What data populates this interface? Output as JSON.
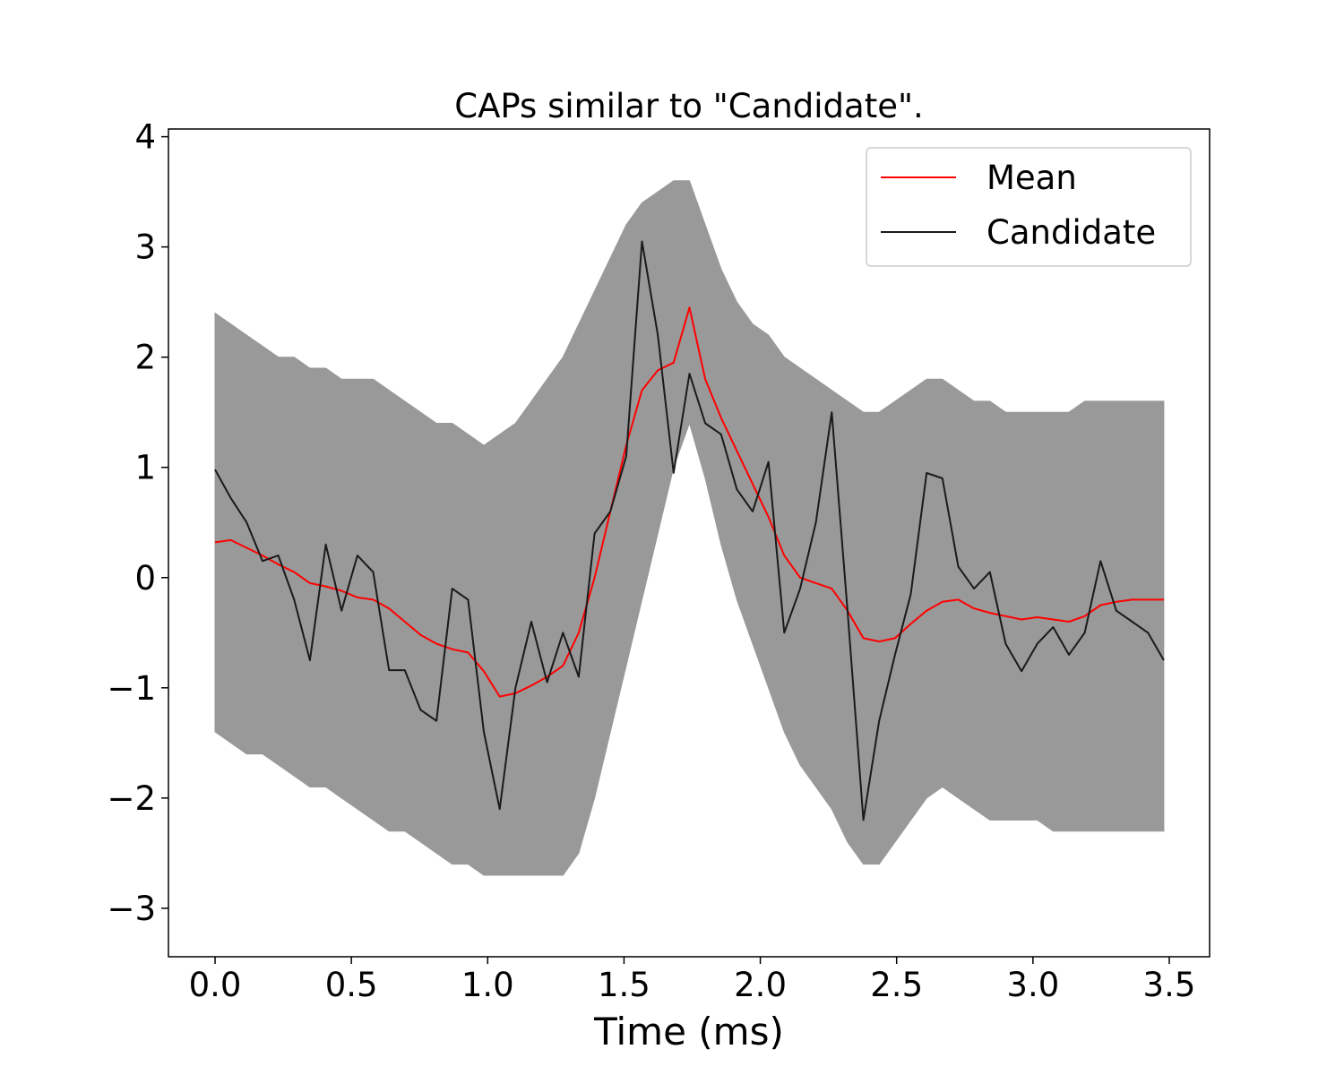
{
  "chart_data": {
    "type": "line",
    "title": "CAPs similar to \"Candidate\".",
    "xlabel": "Time (ms)",
    "xlim": [
      -0.171,
      3.648
    ],
    "ylim": [
      -3.44,
      4.07
    ],
    "xticks": [
      {
        "value": 0,
        "label": "0.0"
      },
      {
        "value": 0.5,
        "label": "0.5"
      },
      {
        "value": 1,
        "label": "1.0"
      },
      {
        "value": 1.5,
        "label": "1.5"
      },
      {
        "value": 2,
        "label": "2.0"
      },
      {
        "value": 2.5,
        "label": "2.5"
      },
      {
        "value": 3,
        "label": "3.0"
      },
      {
        "value": 3.5,
        "label": "3.5"
      }
    ],
    "yticks": [
      {
        "value": -3,
        "label": "−3"
      },
      {
        "value": -2,
        "label": "−2"
      },
      {
        "value": -1,
        "label": "−1"
      },
      0,
      1,
      2,
      3,
      4
    ],
    "legend": "upper right",
    "x": [
      0,
      0.058,
      0.116,
      0.174,
      0.232,
      0.29,
      0.348,
      0.406,
      0.464,
      0.522,
      0.58,
      0.638,
      0.696,
      0.754,
      0.812,
      0.87,
      0.928,
      0.986,
      1.044,
      1.102,
      1.16,
      1.218,
      1.276,
      1.334,
      1.392,
      1.45,
      1.508,
      1.566,
      1.624,
      1.682,
      1.74,
      1.798,
      1.856,
      1.914,
      1.972,
      2.03,
      2.088,
      2.146,
      2.204,
      2.262,
      2.32,
      2.378,
      2.436,
      2.494,
      2.552,
      2.61,
      2.668,
      2.726,
      2.784,
      2.842,
      2.9,
      2.958,
      3.016,
      3.074,
      3.132,
      3.19,
      3.248,
      3.306,
      3.364,
      3.422,
      3.48
    ],
    "band": {
      "color": "#999999",
      "upper": [
        2.4,
        2.3,
        2.2,
        2.1,
        2.0,
        2.0,
        1.9,
        1.9,
        1.8,
        1.8,
        1.8,
        1.7,
        1.6,
        1.5,
        1.4,
        1.4,
        1.3,
        1.2,
        1.3,
        1.4,
        1.6,
        1.8,
        2.0,
        2.3,
        2.6,
        2.9,
        3.2,
        3.4,
        3.5,
        3.6,
        3.6,
        3.2,
        2.8,
        2.5,
        2.3,
        2.2,
        2.0,
        1.9,
        1.8,
        1.7,
        1.6,
        1.5,
        1.5,
        1.6,
        1.7,
        1.8,
        1.8,
        1.7,
        1.6,
        1.6,
        1.5,
        1.5,
        1.5,
        1.5,
        1.5,
        1.6,
        1.6,
        1.6,
        1.6,
        1.6,
        1.6
      ],
      "lower": [
        -1.4,
        -1.5,
        -1.6,
        -1.6,
        -1.7,
        -1.8,
        -1.9,
        -1.9,
        -2.0,
        -2.1,
        -2.2,
        -2.3,
        -2.3,
        -2.4,
        -2.5,
        -2.6,
        -2.6,
        -2.7,
        -2.7,
        -2.7,
        -2.7,
        -2.7,
        -2.7,
        -2.5,
        -2.0,
        -1.4,
        -0.8,
        -0.2,
        0.4,
        1.0,
        1.4,
        0.9,
        0.3,
        -0.2,
        -0.6,
        -1.0,
        -1.4,
        -1.7,
        -1.9,
        -2.1,
        -2.4,
        -2.6,
        -2.6,
        -2.4,
        -2.2,
        -2.0,
        -1.9,
        -2.0,
        -2.1,
        -2.2,
        -2.2,
        -2.2,
        -2.2,
        -2.3,
        -2.3,
        -2.3,
        -2.3,
        -2.3,
        -2.3,
        -2.3,
        -2.3
      ]
    },
    "series": [
      {
        "name": "Mean",
        "color": "#ff0000",
        "values": [
          0.32,
          0.34,
          0.27,
          0.2,
          0.12,
          0.05,
          -0.05,
          -0.08,
          -0.12,
          -0.18,
          -0.2,
          -0.28,
          -0.4,
          -0.52,
          -0.6,
          -0.65,
          -0.68,
          -0.85,
          -1.08,
          -1.05,
          -0.98,
          -0.9,
          -0.8,
          -0.5,
          0.0,
          0.6,
          1.2,
          1.7,
          1.88,
          1.95,
          2.45,
          1.8,
          1.45,
          1.15,
          0.85,
          0.55,
          0.2,
          0.0,
          -0.05,
          -0.1,
          -0.3,
          -0.55,
          -0.58,
          -0.55,
          -0.42,
          -0.3,
          -0.22,
          -0.2,
          -0.28,
          -0.32,
          -0.35,
          -0.38,
          -0.36,
          -0.38,
          -0.4,
          -0.35,
          -0.25,
          -0.22,
          -0.2,
          -0.2,
          -0.2
        ]
      },
      {
        "name": "Candidate",
        "color": "#1a1a1a",
        "values": [
          0.98,
          0.72,
          0.5,
          0.15,
          0.2,
          -0.2,
          -0.75,
          0.3,
          -0.3,
          0.2,
          0.05,
          -0.84,
          -0.84,
          -1.2,
          -1.3,
          -0.1,
          -0.2,
          -1.4,
          -2.1,
          -1.0,
          -0.4,
          -0.95,
          -0.5,
          -0.9,
          0.4,
          0.6,
          1.1,
          3.05,
          2.2,
          0.95,
          1.85,
          1.4,
          1.3,
          0.8,
          0.6,
          1.05,
          -0.5,
          -0.1,
          0.5,
          1.5,
          -0.3,
          -2.2,
          -1.3,
          -0.7,
          -0.15,
          0.95,
          0.9,
          0.1,
          -0.1,
          0.05,
          -0.6,
          -0.85,
          -0.6,
          -0.45,
          -0.7,
          -0.5,
          0.15,
          -0.3,
          -0.4,
          -0.5,
          -0.75
        ]
      }
    ]
  }
}
